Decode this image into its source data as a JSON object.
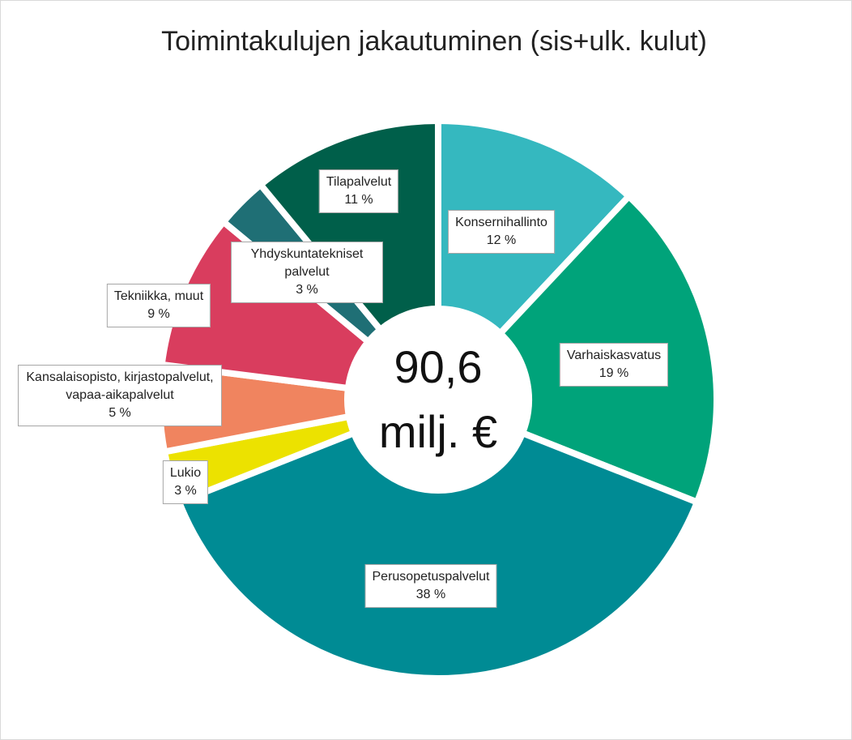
{
  "chart_data": {
    "type": "donut",
    "title": "Toimintakulujen jakautuminen (sis+ulk. kulut)",
    "center_label": [
      "90,6",
      "milj. €"
    ],
    "categories": [
      "Konsernihallinto",
      "Varhaiskasvatus",
      "Perusopetuspalvelut",
      "Lukio",
      "Kansalaisopisto, kirjastopalvelut, vapaa-aikapalvelut",
      "Tekniikka, muut",
      "Yhdyskuntatekniset palvelut",
      "Tilapalvelut"
    ],
    "values": [
      12,
      19,
      38,
      3,
      5,
      9,
      3,
      11
    ],
    "value_labels": [
      "12 %",
      "19 %",
      "38 %",
      "3 %",
      "5 %",
      "9 %",
      "3 %",
      "11 %"
    ],
    "colors": [
      "#35b8bf",
      "#00a37a",
      "#008b94",
      "#ece200",
      "#f0845f",
      "#d93d5e",
      "#1f6f75",
      "#005f4a"
    ]
  }
}
